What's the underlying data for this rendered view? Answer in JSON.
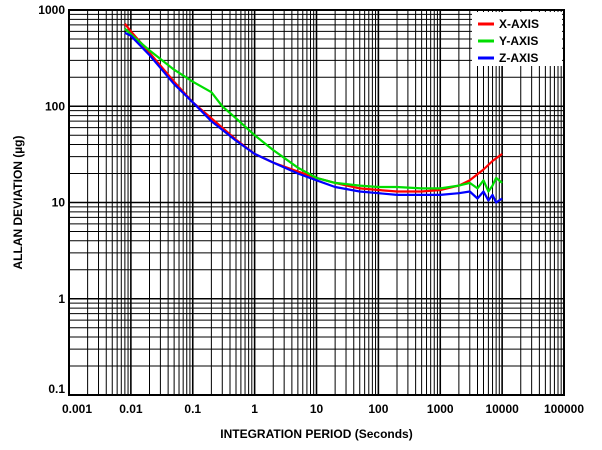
{
  "chart_data": {
    "type": "line",
    "title": "",
    "xlabel": "INTEGRATION PERIOD (Seconds)",
    "ylabel": "ALLAN DEVIATION (µg)",
    "xscale": "log",
    "yscale": "log",
    "xlim": [
      0.001,
      100000
    ],
    "ylim": [
      0.1,
      1000
    ],
    "grid": true,
    "legend_position": "top-right",
    "x_tick_labels": [
      "0.001",
      "0.01",
      "0.1",
      "1",
      "10",
      "100",
      "1000",
      "10000",
      "100000"
    ],
    "y_tick_labels": [
      "0.1",
      "1",
      "10",
      "100",
      "1000"
    ],
    "series": [
      {
        "name": "X-AXIS",
        "color": "#ff0000",
        "points": [
          [
            0.008,
            720
          ],
          [
            0.01,
            600
          ],
          [
            0.02,
            360
          ],
          [
            0.05,
            180
          ],
          [
            0.1,
            110
          ],
          [
            0.2,
            75
          ],
          [
            0.5,
            45
          ],
          [
            1,
            32
          ],
          [
            2,
            26
          ],
          [
            5,
            21
          ],
          [
            10,
            18
          ],
          [
            20,
            16
          ],
          [
            50,
            14
          ],
          [
            100,
            13.5
          ],
          [
            200,
            13
          ],
          [
            500,
            13
          ],
          [
            1000,
            13.5
          ],
          [
            2000,
            15
          ],
          [
            3000,
            17
          ],
          [
            5000,
            22
          ],
          [
            7000,
            27
          ],
          [
            10000,
            32
          ]
        ]
      },
      {
        "name": "Y-AXIS",
        "color": "#00dd00",
        "points": [
          [
            0.008,
            640
          ],
          [
            0.01,
            560
          ],
          [
            0.02,
            380
          ],
          [
            0.05,
            240
          ],
          [
            0.1,
            180
          ],
          [
            0.2,
            140
          ],
          [
            0.3,
            100
          ],
          [
            0.5,
            75
          ],
          [
            1,
            50
          ],
          [
            2,
            35
          ],
          [
            5,
            23
          ],
          [
            10,
            18
          ],
          [
            20,
            16
          ],
          [
            50,
            15
          ],
          [
            100,
            14.5
          ],
          [
            200,
            14.5
          ],
          [
            500,
            14
          ],
          [
            1000,
            14
          ],
          [
            2000,
            15
          ],
          [
            3000,
            16
          ],
          [
            4000,
            14
          ],
          [
            5000,
            17
          ],
          [
            6000,
            13
          ],
          [
            7000,
            15
          ],
          [
            8000,
            18
          ],
          [
            10000,
            16
          ]
        ]
      },
      {
        "name": "Z-AXIS",
        "color": "#0000ff",
        "points": [
          [
            0.008,
            580
          ],
          [
            0.01,
            540
          ],
          [
            0.02,
            340
          ],
          [
            0.05,
            170
          ],
          [
            0.1,
            110
          ],
          [
            0.2,
            70
          ],
          [
            0.5,
            44
          ],
          [
            1,
            32
          ],
          [
            2,
            26
          ],
          [
            5,
            20
          ],
          [
            10,
            17
          ],
          [
            20,
            14.5
          ],
          [
            50,
            13
          ],
          [
            100,
            12.5
          ],
          [
            200,
            12
          ],
          [
            500,
            12
          ],
          [
            1000,
            12
          ],
          [
            2000,
            12.5
          ],
          [
            3000,
            13
          ],
          [
            4000,
            11
          ],
          [
            5000,
            13
          ],
          [
            6000,
            10.5
          ],
          [
            7000,
            12
          ],
          [
            8000,
            10
          ],
          [
            10000,
            11
          ]
        ]
      }
    ]
  }
}
